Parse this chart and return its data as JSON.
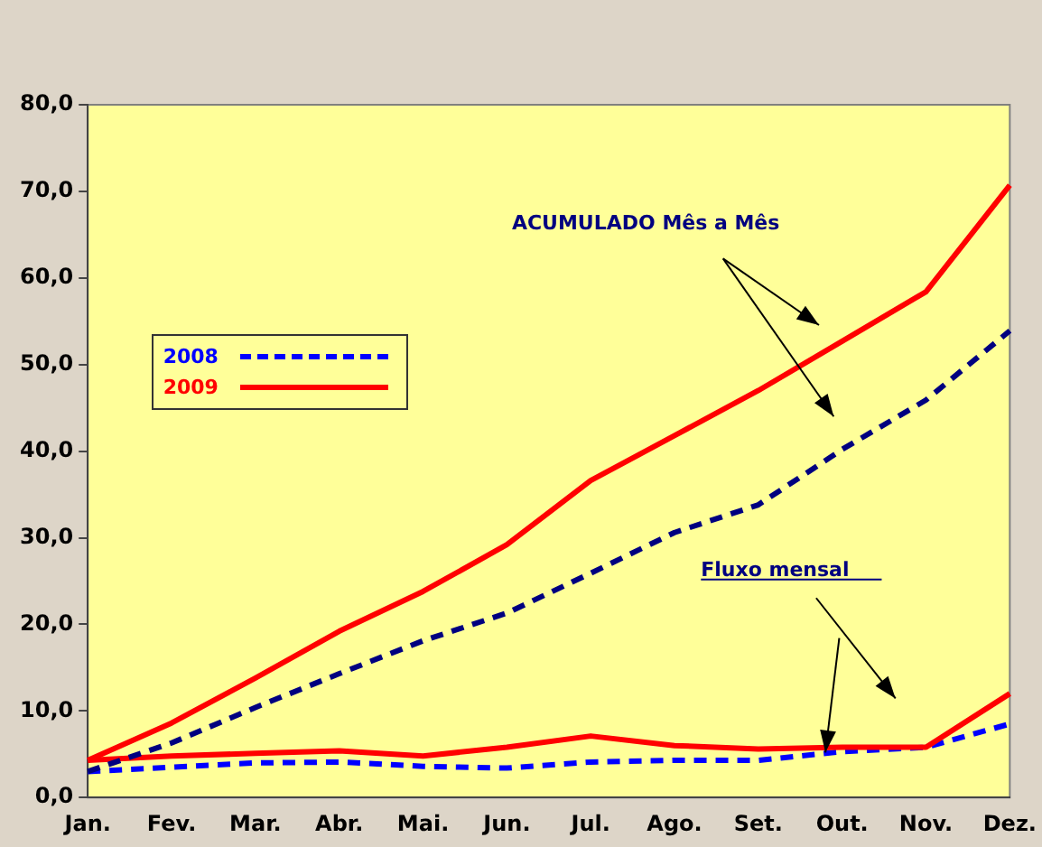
{
  "chart_data": {
    "type": "line",
    "categories": [
      "Jan.",
      "Fev.",
      "Mar.",
      "Abr.",
      "Mai.",
      "Jun.",
      "Jul.",
      "Ago.",
      "Set.",
      "Out.",
      "Nov.",
      "Dez."
    ],
    "series": [
      {
        "color": "#ff0000",
        "line_style": "solid",
        "values": [
          4.3,
          8.6,
          13.8,
          19.2,
          23.8,
          29.2,
          36.6,
          41.8,
          47.0,
          52.7,
          58.4,
          70.7
        ]
      },
      {
        "color": "#000080",
        "line_style": "dashed",
        "values": [
          3.0,
          6.3,
          10.4,
          14.3,
          18.1,
          21.3,
          25.9,
          30.6,
          33.8,
          40.2,
          45.9,
          53.9
        ]
      },
      {
        "name": "2009",
        "color": "#ff0000",
        "line_style": "solid",
        "values": [
          4.3,
          4.8,
          5.1,
          5.4,
          4.8,
          5.8,
          7.1,
          6.0,
          5.6,
          5.8,
          5.8,
          12.0
        ]
      },
      {
        "name": "2008",
        "color": "#0000ff",
        "line_style": "dashed",
        "values": [
          3.0,
          3.5,
          4.0,
          4.1,
          3.6,
          3.4,
          4.1,
          4.3,
          4.3,
          5.3,
          5.8,
          8.5
        ]
      }
    ],
    "ylim": [
      0,
      80
    ],
    "yticks": [
      {
        "value": 0,
        "label": "0,0"
      },
      {
        "value": 10,
        "label": "10,0"
      },
      {
        "value": 20,
        "label": "20,0"
      },
      {
        "value": 30,
        "label": "30,0"
      },
      {
        "value": 40,
        "label": "40,0"
      },
      {
        "value": 50,
        "label": "50,0"
      },
      {
        "value": 60,
        "label": "60,0"
      },
      {
        "value": 70,
        "label": "70,0"
      },
      {
        "value": 80,
        "label": "80,0"
      }
    ],
    "annotations": [
      "ACUMULADO Mês a Mês",
      "Fluxo mensal"
    ],
    "grid": false,
    "legend": "left",
    "marker": "none"
  }
}
